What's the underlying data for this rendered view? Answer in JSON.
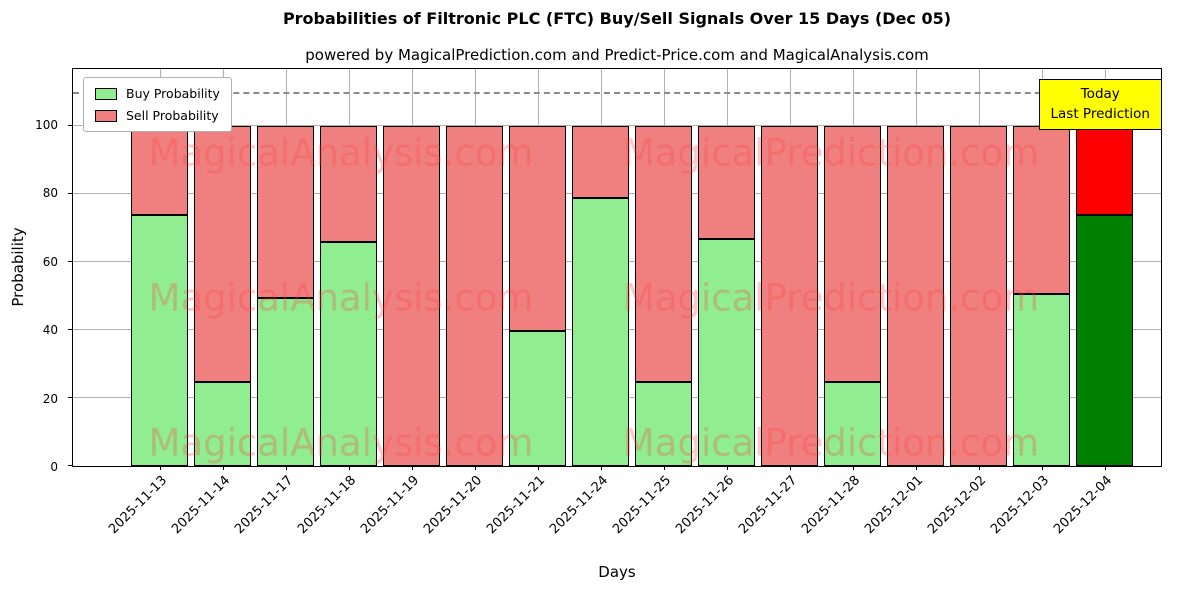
{
  "title": "Probabilities of Filtronic PLC (FTC) Buy/Sell Signals Over 15 Days (Dec 05)",
  "subtitle": "powered by MagicalPrediction.com and Predict-Price.com and MagicalAnalysis.com",
  "legend": {
    "buy_label": "Buy Probability",
    "sell_label": "Sell Probability"
  },
  "annotation_box": {
    "line1": "Today",
    "line2": "Last Prediction"
  },
  "watermarks": [
    "MagicalAnalysis.com",
    "MagicalPrediction.com"
  ],
  "colors": {
    "buy": "#90ee90",
    "sell": "#f08080",
    "today_buy": "#008000",
    "today_sell": "#ff0000",
    "annotation_bg": "#ffff00",
    "grid": "#b0b0b0",
    "watermark": "rgba(255,70,70,0.30)"
  },
  "chart_data": {
    "type": "bar",
    "stacked": true,
    "title": "Probabilities of Filtronic PLC (FTC) Buy/Sell Signals Over 15 Days (Dec 05)",
    "xlabel": "Days",
    "ylabel": "Probability",
    "ylim": [
      0,
      116.7
    ],
    "yticks": [
      0,
      20,
      40,
      60,
      80,
      100
    ],
    "dashed_line_y": 110,
    "grid": true,
    "legend_position": "upper left",
    "categories": [
      "2025-11-13",
      "2025-11-14",
      "2025-11-17",
      "2025-11-18",
      "2025-11-19",
      "2025-11-20",
      "2025-11-21",
      "2025-11-24",
      "2025-11-25",
      "2025-11-26",
      "2025-11-27",
      "2025-11-28",
      "2025-12-01",
      "2025-12-02",
      "2025-12-03",
      "2025-12-04"
    ],
    "series": [
      {
        "name": "Buy Probability",
        "color": "#90ee90",
        "values": [
          74,
          24.5,
          49.5,
          66,
          0,
          0,
          39.5,
          79,
          24.5,
          67,
          0,
          24.5,
          0,
          0,
          50.5,
          74
        ]
      },
      {
        "name": "Sell Probability",
        "color": "#f08080",
        "values": [
          26,
          75.5,
          50.5,
          34,
          100,
          100,
          60.5,
          21,
          75.5,
          33,
          100,
          75.5,
          100,
          100,
          49.5,
          26
        ]
      }
    ],
    "today_index": 15
  }
}
